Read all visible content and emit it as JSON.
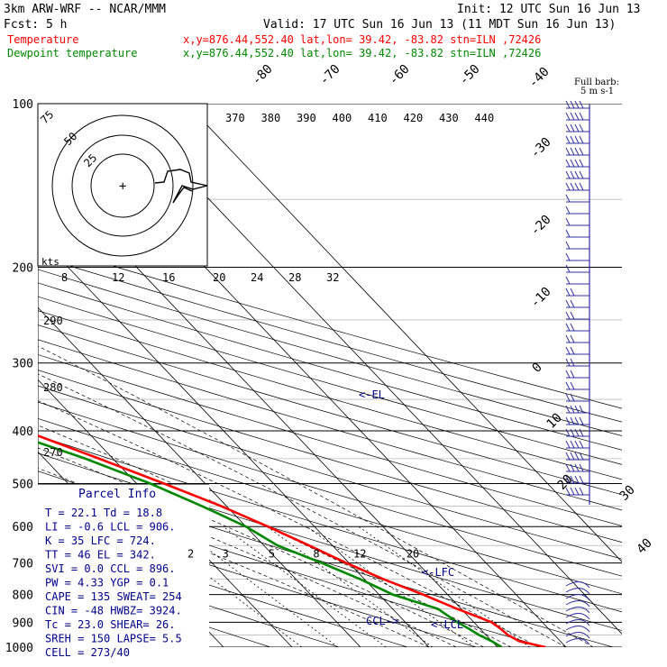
{
  "header": {
    "model": "3km ARW-WRF -- NCAR/MMM",
    "init": "Init: 12 UTC Sun 16 Jun 13",
    "fcst": "Fcst:     5 h",
    "valid": "Valid: 17 UTC Sun 16 Jun 13 (11 MDT Sun 16 Jun 13)",
    "temp_label": "Temperature",
    "temp_loc": "x,y=876.44,552.40   lat,lon= 39.42, -83.82  stn=ILN ,72426",
    "dew_label": "Dewpoint temperature",
    "dew_loc": "x,y=876.44,552.40   lat,lon= 39.42, -83.82  stn=ILN ,72426"
  },
  "colors": {
    "temperature": "#ff0000",
    "dewpoint": "#008800",
    "text_blue": "#00008b",
    "wind": "#3030a0"
  },
  "chart_data": {
    "type": "line",
    "title": "",
    "y_axis": {
      "label": "",
      "scale": "log",
      "range": [
        1000,
        100
      ],
      "ticks": [
        100,
        200,
        300,
        400,
        500,
        600,
        700,
        800,
        900,
        1000
      ]
    },
    "skewed_isotherm_labels": [
      -80,
      -70,
      -60,
      -50,
      -40,
      -30,
      -20,
      -10,
      0,
      10,
      20,
      30,
      40
    ],
    "theta_labels": [
      370,
      380,
      390,
      400,
      410,
      420,
      430,
      440
    ],
    "theta_left_labels": [
      290,
      280,
      270
    ],
    "mixing_ratio_labels": [
      2,
      3,
      5,
      8,
      12,
      20
    ],
    "hodo_speed_labels": [
      8,
      12,
      16,
      20,
      24,
      28,
      32
    ],
    "hodo_ring_labels": [
      75,
      50,
      25
    ],
    "hodo_units": "kts",
    "series": [
      {
        "name": "Temperature",
        "points": [
          [
            1000,
            27
          ],
          [
            975,
            24
          ],
          [
            950,
            23.2
          ],
          [
            925,
            23
          ],
          [
            900,
            22.6
          ],
          [
            850,
            19.4
          ],
          [
            800,
            16.4
          ],
          [
            750,
            12.8
          ],
          [
            700,
            9.6
          ],
          [
            650,
            6.6
          ],
          [
            600,
            3.2
          ],
          [
            550,
            -0.8
          ],
          [
            500,
            -6
          ],
          [
            450,
            -12
          ],
          [
            400,
            -19
          ],
          [
            350,
            -27
          ],
          [
            300,
            -36
          ],
          [
            250,
            -46
          ],
          [
            200,
            -55.5
          ],
          [
            175,
            -60
          ],
          [
            150,
            -62
          ],
          [
            125,
            -62
          ],
          [
            100,
            -62
          ]
        ]
      },
      {
        "name": "Dewpoint temperature",
        "points": [
          [
            1000,
            20.6
          ],
          [
            975,
            20
          ],
          [
            950,
            19
          ],
          [
            925,
            18.4
          ],
          [
            900,
            17.6
          ],
          [
            850,
            16.6
          ],
          [
            800,
            12
          ],
          [
            750,
            9.4
          ],
          [
            700,
            6
          ],
          [
            650,
            2
          ],
          [
            600,
            0
          ],
          [
            550,
            -3.6
          ],
          [
            500,
            -8
          ],
          [
            450,
            -14
          ],
          [
            400,
            -22
          ],
          [
            350,
            -33
          ],
          [
            300,
            -43
          ],
          [
            250,
            -56
          ],
          [
            200,
            -64
          ],
          [
            175,
            -70
          ],
          [
            150,
            -76
          ],
          [
            125,
            -85
          ],
          [
            100,
            -92
          ]
        ]
      }
    ],
    "annotations": [
      "<-EL",
      "<-LFC",
      "CCL->",
      "<-LCL"
    ],
    "wind_legend": {
      "title": "Full barb:",
      "units": "5 m s-1"
    }
  },
  "parcel_info": {
    "title": "Parcel Info",
    "rows": [
      "T  =    22.1  Td  =   18.8",
      "LI =    -0.6  LCL =   906.",
      "K  =     35   LFC =   724.",
      "TT =     46   EL  =   342.",
      "SVI =    0.0  CCL =   896.",
      "PW =    4.33  YGP =    0.1",
      "CAPE =   135  SWEAT=   254",
      "CIN =    -48  HWBZ= 3924.",
      "Tc  =   23.0  SHEAR=   26.",
      "SREH =   150  LAPSE=   5.5",
      "CELL = 273/40"
    ]
  }
}
